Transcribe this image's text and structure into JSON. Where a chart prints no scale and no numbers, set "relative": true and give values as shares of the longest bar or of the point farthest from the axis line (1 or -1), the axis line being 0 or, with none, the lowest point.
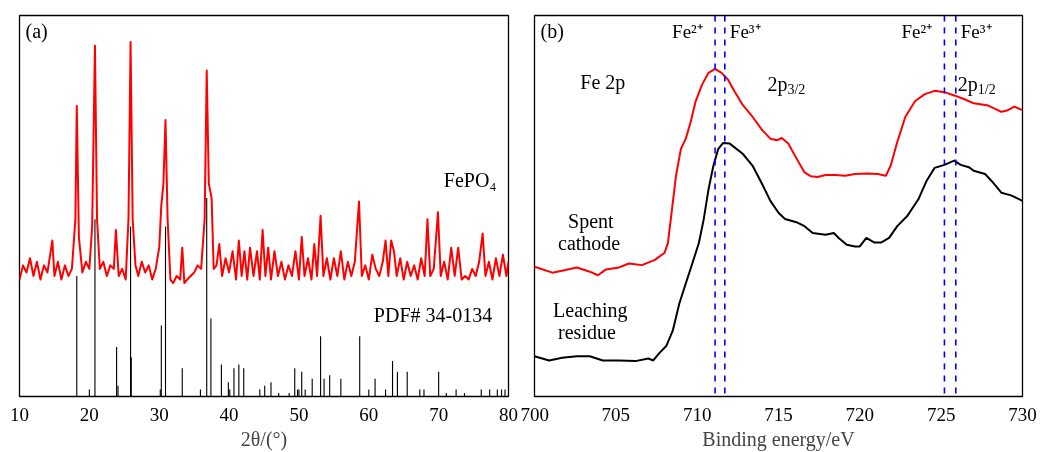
{
  "chart_data": [
    {
      "type": "line",
      "title": "(a)",
      "xlabel": "2θ/(°)",
      "xlim": [
        10,
        80
      ],
      "xticks": [
        10,
        20,
        30,
        40,
        50,
        60,
        70,
        80
      ],
      "relative": true,
      "tick_labels": "x",
      "grid": false,
      "legend": false,
      "marker": "none",
      "line_style": "solid",
      "series": [
        {
          "name": "FePO₄",
          "color": "#ff0000",
          "x": [
            10,
            10.5,
            11,
            11.5,
            12,
            12.5,
            13,
            13.5,
            14,
            14.7,
            15,
            15.5,
            16,
            16.5,
            17,
            17.5,
            18.0,
            18.2,
            18.5,
            19,
            19.5,
            20,
            20.4,
            20.8,
            21.1,
            21.5,
            22,
            22.5,
            23,
            23.5,
            23.8,
            24.2,
            24.7,
            25.2,
            25.6,
            25.9,
            26.2,
            26.6,
            27,
            27.5,
            28,
            28.5,
            29,
            29.5,
            30.0,
            30.3,
            30.6,
            30.9,
            31.2,
            31.6,
            32,
            32.5,
            33,
            33.3,
            33.6,
            34,
            34.5,
            35,
            35.5,
            36,
            36.5,
            36.8,
            37.1,
            37.5,
            37.8,
            38.2,
            38.6,
            39,
            39.5,
            40,
            40.5,
            41,
            41.4,
            41.8,
            42.2,
            42.6,
            43,
            43.5,
            44,
            44.4,
            44.8,
            45.2,
            45.6,
            46,
            46.5,
            47,
            47.5,
            48,
            48.5,
            49,
            49.5,
            50,
            50.4,
            50.8,
            51.3,
            51.8,
            52.2,
            52.6,
            53.1,
            53.5,
            54,
            54.5,
            55,
            55.5,
            56,
            56.5,
            57,
            57.5,
            58,
            58.6,
            59,
            59.5,
            60,
            60.5,
            61,
            61.5,
            62,
            62.4,
            62.8,
            63.2,
            63.6,
            64,
            64.5,
            65,
            65.5,
            66,
            66.5,
            67,
            67.5,
            68,
            68.4,
            68.8,
            69.3,
            69.9,
            70.3,
            70.8,
            71.3,
            71.8,
            72.3,
            72.8,
            73.3,
            73.8,
            74.3,
            74.8,
            75.3,
            75.8,
            76.3,
            76.7,
            77.2,
            77.7,
            78.2,
            78.7,
            79.2,
            79.7,
            80
          ],
          "values": [
            0.33,
            0.37,
            0.35,
            0.39,
            0.34,
            0.38,
            0.33,
            0.37,
            0.35,
            0.44,
            0.34,
            0.38,
            0.33,
            0.37,
            0.34,
            0.36,
            0.5,
            0.82,
            0.45,
            0.35,
            0.38,
            0.36,
            0.48,
            0.99,
            0.5,
            0.36,
            0.38,
            0.34,
            0.37,
            0.36,
            0.47,
            0.34,
            0.36,
            0.33,
            0.5,
            1.0,
            0.5,
            0.37,
            0.34,
            0.38,
            0.35,
            0.37,
            0.33,
            0.36,
            0.42,
            0.54,
            0.6,
            0.78,
            0.5,
            0.33,
            0.32,
            0.34,
            0.33,
            0.42,
            0.32,
            0.33,
            0.34,
            0.35,
            0.37,
            0.36,
            0.5,
            0.92,
            0.6,
            0.56,
            0.36,
            0.37,
            0.43,
            0.34,
            0.39,
            0.35,
            0.41,
            0.33,
            0.44,
            0.34,
            0.41,
            0.33,
            0.42,
            0.34,
            0.41,
            0.33,
            0.47,
            0.34,
            0.42,
            0.33,
            0.41,
            0.34,
            0.38,
            0.33,
            0.37,
            0.34,
            0.41,
            0.33,
            0.45,
            0.34,
            0.39,
            0.33,
            0.43,
            0.34,
            0.51,
            0.34,
            0.39,
            0.33,
            0.39,
            0.34,
            0.41,
            0.33,
            0.38,
            0.34,
            0.38,
            0.55,
            0.34,
            0.37,
            0.33,
            0.4,
            0.36,
            0.34,
            0.38,
            0.44,
            0.34,
            0.44,
            0.41,
            0.34,
            0.39,
            0.33,
            0.38,
            0.34,
            0.37,
            0.33,
            0.39,
            0.34,
            0.5,
            0.34,
            0.36,
            0.52,
            0.34,
            0.38,
            0.33,
            0.42,
            0.34,
            0.42,
            0.33,
            0.34,
            0.33,
            0.36,
            0.34,
            0.38,
            0.46,
            0.34,
            0.38,
            0.33,
            0.39,
            0.34,
            0.4,
            0.34,
            0.38
          ]
        },
        {
          "name": "PDF# 34-0134",
          "type": "bar",
          "color": "#000000",
          "x": [
            18.2,
            20.0,
            20.8,
            23.9,
            24.1,
            25.9,
            26.0,
            30.15,
            30.3,
            30.9,
            33.3,
            35.9,
            36.8,
            37.4,
            38.9,
            39.9,
            40.1,
            40.7,
            41.4,
            42.1,
            44.4,
            45.1,
            46.0,
            47.1,
            48.6,
            49.4,
            49.8,
            50.0,
            50.4,
            50.9,
            51.9,
            53.1,
            53.6,
            54.4,
            56.0,
            58.7,
            60.0,
            60.9,
            62.4,
            63.4,
            64.1,
            65.5,
            67.3,
            67.9,
            70.0,
            71.1,
            72.5,
            73.7,
            76.1,
            77.3,
            78.4,
            79.0,
            79.5
          ],
          "values": [
            0.34,
            0.02,
            0.5,
            0.14,
            0.03,
            0.48,
            0.11,
            0.02,
            0.2,
            0.48,
            0.08,
            0.02,
            0.56,
            0.22,
            0.09,
            0.04,
            0.02,
            0.08,
            0.09,
            0.08,
            0.02,
            0.03,
            0.04,
            0.01,
            0.01,
            0.08,
            0.02,
            0.02,
            0.07,
            0.02,
            0.05,
            0.17,
            0.05,
            0.06,
            0.05,
            0.17,
            0.02,
            0.05,
            0.02,
            0.1,
            0.07,
            0.07,
            0.02,
            0.02,
            0.07,
            0.01,
            0.02,
            0.01,
            0.02,
            0.02,
            0.02,
            0.02,
            0.02
          ]
        }
      ]
    },
    {
      "type": "line",
      "title": "(b)",
      "xlabel": "Binding energy/eV",
      "xlim": [
        700,
        730
      ],
      "xticks": [
        700,
        705,
        710,
        715,
        720,
        725,
        730
      ],
      "relative": true,
      "tick_labels": "x",
      "grid": false,
      "legend": false,
      "marker": "none",
      "line_style": "solid",
      "annotations": [
        "Fe 2p",
        "2p$_{3/2}$",
        "2p$_{1/2}$"
      ],
      "ref_lines": [
        {
          "axis": "x",
          "value": 711.1,
          "label": "Fe²⁺",
          "color": "#0000ff",
          "line_style": "dashed"
        },
        {
          "axis": "x",
          "value": 711.7,
          "label": "Fe³⁺",
          "color": "#0000ff",
          "line_style": "dashed"
        },
        {
          "axis": "x",
          "value": 725.2,
          "label": "Fe²⁺",
          "color": "#0000ff",
          "line_style": "dashed"
        },
        {
          "axis": "x",
          "value": 725.9,
          "label": "Fe³⁺",
          "color": "#0000ff",
          "line_style": "dashed"
        }
      ],
      "series": [
        {
          "name": "Spent cathode",
          "color": "#ff0000",
          "x": [
            700.0,
            701.1,
            701.9,
            702.6,
            703.4,
            703.9,
            704.4,
            705.2,
            705.8,
            706.6,
            707.4,
            708.0,
            708.2,
            708.4,
            708.7,
            709.0,
            709.3,
            709.6,
            709.9,
            710.3,
            710.7,
            711.1,
            711.5,
            711.9,
            712.3,
            712.8,
            713.4,
            714.0,
            714.5,
            714.9,
            715.2,
            715.6,
            716.0,
            716.6,
            717.0,
            717.4,
            717.9,
            718.5,
            719.1,
            719.7,
            720.5,
            721.1,
            721.6,
            721.9,
            722.3,
            722.8,
            723.4,
            724.0,
            724.6,
            725.2,
            725.8,
            726.4,
            727.0,
            727.9,
            728.7,
            729.1,
            729.5,
            730.0
          ],
          "values": [
            0.396,
            0.378,
            0.386,
            0.394,
            0.381,
            0.37,
            0.388,
            0.394,
            0.406,
            0.401,
            0.417,
            0.439,
            0.468,
            0.55,
            0.674,
            0.756,
            0.787,
            0.838,
            0.9,
            0.952,
            0.988,
            1.0,
            0.988,
            0.967,
            0.931,
            0.89,
            0.854,
            0.813,
            0.787,
            0.782,
            0.789,
            0.772,
            0.736,
            0.684,
            0.672,
            0.67,
            0.676,
            0.676,
            0.674,
            0.679,
            0.681,
            0.679,
            0.674,
            0.705,
            0.777,
            0.854,
            0.902,
            0.923,
            0.933,
            0.929,
            0.919,
            0.908,
            0.895,
            0.888,
            0.869,
            0.874,
            0.885,
            0.874
          ]
        },
        {
          "name": "Leaching residue",
          "color": "#000000",
          "x": [
            700.0,
            700.9,
            701.7,
            702.6,
            703.4,
            704.2,
            705.2,
            706.2,
            707.0,
            707.3,
            707.7,
            708.1,
            708.5,
            708.9,
            709.3,
            709.7,
            710.1,
            710.4,
            710.7,
            711.0,
            711.3,
            711.6,
            712.0,
            712.8,
            713.4,
            714.0,
            714.5,
            715.0,
            715.4,
            716.1,
            716.6,
            717.1,
            717.9,
            718.4,
            718.7,
            719.2,
            719.7,
            720.0,
            720.4,
            720.9,
            721.3,
            721.8,
            722.3,
            722.9,
            723.6,
            724.1,
            724.6,
            725.2,
            725.8,
            726.2,
            726.7,
            727.0,
            727.7,
            728.1,
            728.7,
            729.3,
            730.0
          ],
          "values": [
            0.123,
            0.11,
            0.118,
            0.123,
            0.123,
            0.11,
            0.11,
            0.108,
            0.116,
            0.11,
            0.134,
            0.154,
            0.201,
            0.283,
            0.345,
            0.406,
            0.468,
            0.54,
            0.633,
            0.705,
            0.756,
            0.774,
            0.772,
            0.741,
            0.705,
            0.648,
            0.597,
            0.561,
            0.542,
            0.532,
            0.52,
            0.499,
            0.494,
            0.499,
            0.484,
            0.463,
            0.458,
            0.458,
            0.484,
            0.47,
            0.47,
            0.484,
            0.52,
            0.55,
            0.602,
            0.658,
            0.698,
            0.707,
            0.72,
            0.707,
            0.7,
            0.689,
            0.679,
            0.658,
            0.622,
            0.614,
            0.597
          ]
        }
      ]
    }
  ]
}
